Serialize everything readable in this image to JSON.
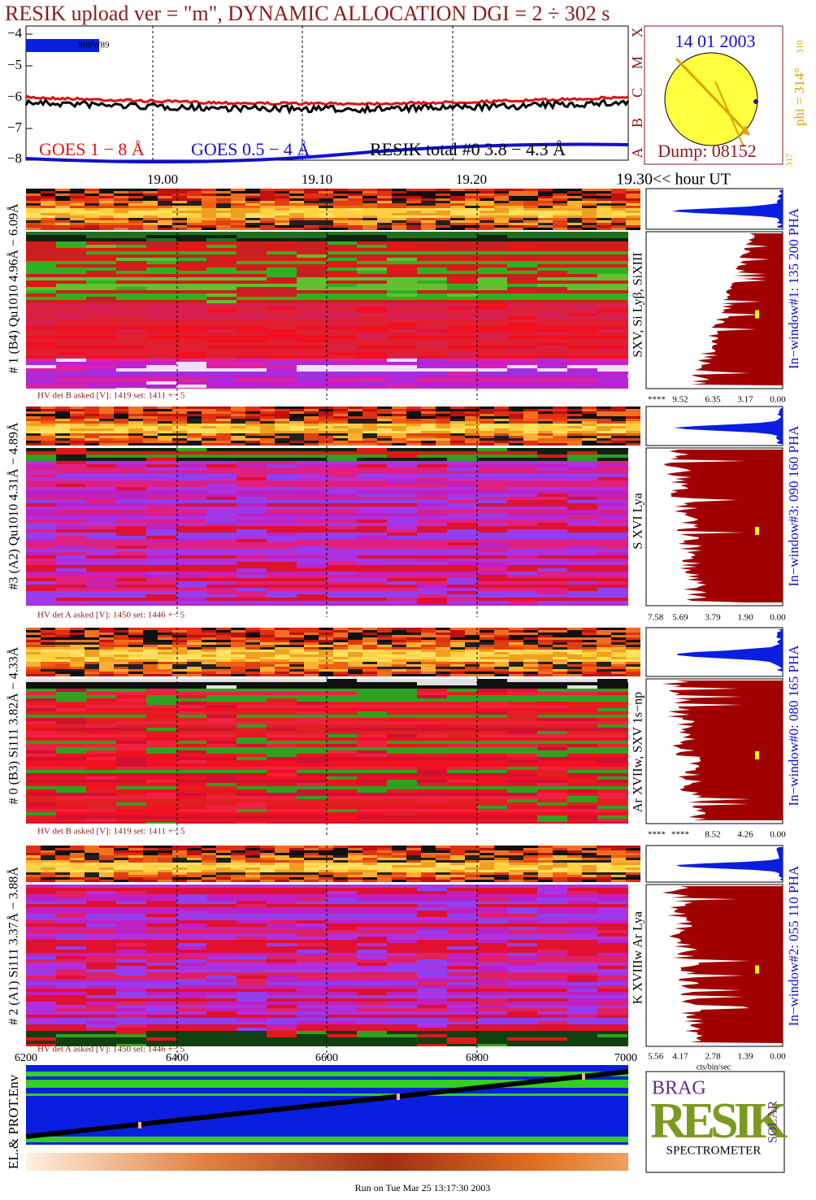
{
  "title": "RESIK upload ver = \"m\", DYNAMIC ALLOCATION  DGI =   2 ÷ 302 s",
  "goes_panel": {
    "yticks": [
      "−4",
      "−5",
      "−6",
      "−7",
      "−8"
    ],
    "legend": [
      "GOES 1 − 8 Å",
      "GOES 0.5 − 4 Å",
      "RESIK total #0  3.8 − 4.3 Å"
    ],
    "location": "S09W89"
  },
  "sun_panel": {
    "date": "14 01 2003",
    "dump": "Dump: 08152",
    "phi": "phi = 314°",
    "phi_sub": "310",
    "scale_low": "317",
    "classes": [
      "A",
      "B",
      "C",
      "M",
      "X"
    ]
  },
  "time_axis": {
    "ticks": [
      "19.00",
      "19.10",
      "19.20"
    ],
    "end_label": "19.30<< hour UT"
  },
  "panels": [
    {
      "side_label": "# 1 (B4) Qu1010 4.96Å − 6.09Å",
      "hv_text": "HV det B asked [V]:  1419 set:  1411 +−   5",
      "line_label": "SXV, Si Lyβ, SiXIII",
      "window_label": "In−window#1:  135 200 PHA",
      "hist_ticks": [
        "****",
        "9.52",
        "6.35",
        "3.17",
        "0.00"
      ]
    },
    {
      "side_label": "#3 (A2) Qu1010  4.31Å − 4.89Å",
      "hv_text": "HV det A asked [V]:  1450 set:  1446 +−   5",
      "line_label": "S XVI Lya",
      "window_label": "In−window#3:  090 160 PHA",
      "hist_ticks": [
        "7.58",
        "5.69",
        "3.79",
        "1.90",
        "0.00"
      ]
    },
    {
      "side_label": "# 0 (B3) Si111  3.82Å − 4.33Å",
      "hv_text": "HV det B asked [V]:  1419 set:  1411 +−   5",
      "line_label": "Ar XVIIw,  SXV 1s−np",
      "window_label": "In−window#0:  080 165 PHA",
      "hist_ticks": [
        "****",
        "****",
        "8.52",
        "4.26",
        "0.00"
      ]
    },
    {
      "side_label": "# 2 (A1) Si111  3.37Å − 3.88Å",
      "hv_text": "HV det A asked [V]:  1450 set:  1446 +−   5",
      "line_label": "K XVIIIw  Ar Lya",
      "window_label": "In−window#2:  055 110 PHA",
      "hist_ticks": [
        "5.56",
        "4.17",
        "2.78",
        "1.39",
        "0.00"
      ]
    }
  ],
  "hist_unit": "cts/bin/sec",
  "channel_axis": {
    "ticks": [
      "6200",
      "6400",
      "6600",
      "6800",
      "7000"
    ]
  },
  "env_panel": {
    "label": "EL.& PROT.Env"
  },
  "logo": {
    "letters": "BRAG",
    "name": "RESIK",
    "solar": "SOLAR",
    "subtitle": "SPECTROMETER"
  },
  "footer": "Run on Tue Mar 25 13:17:30 2003"
}
